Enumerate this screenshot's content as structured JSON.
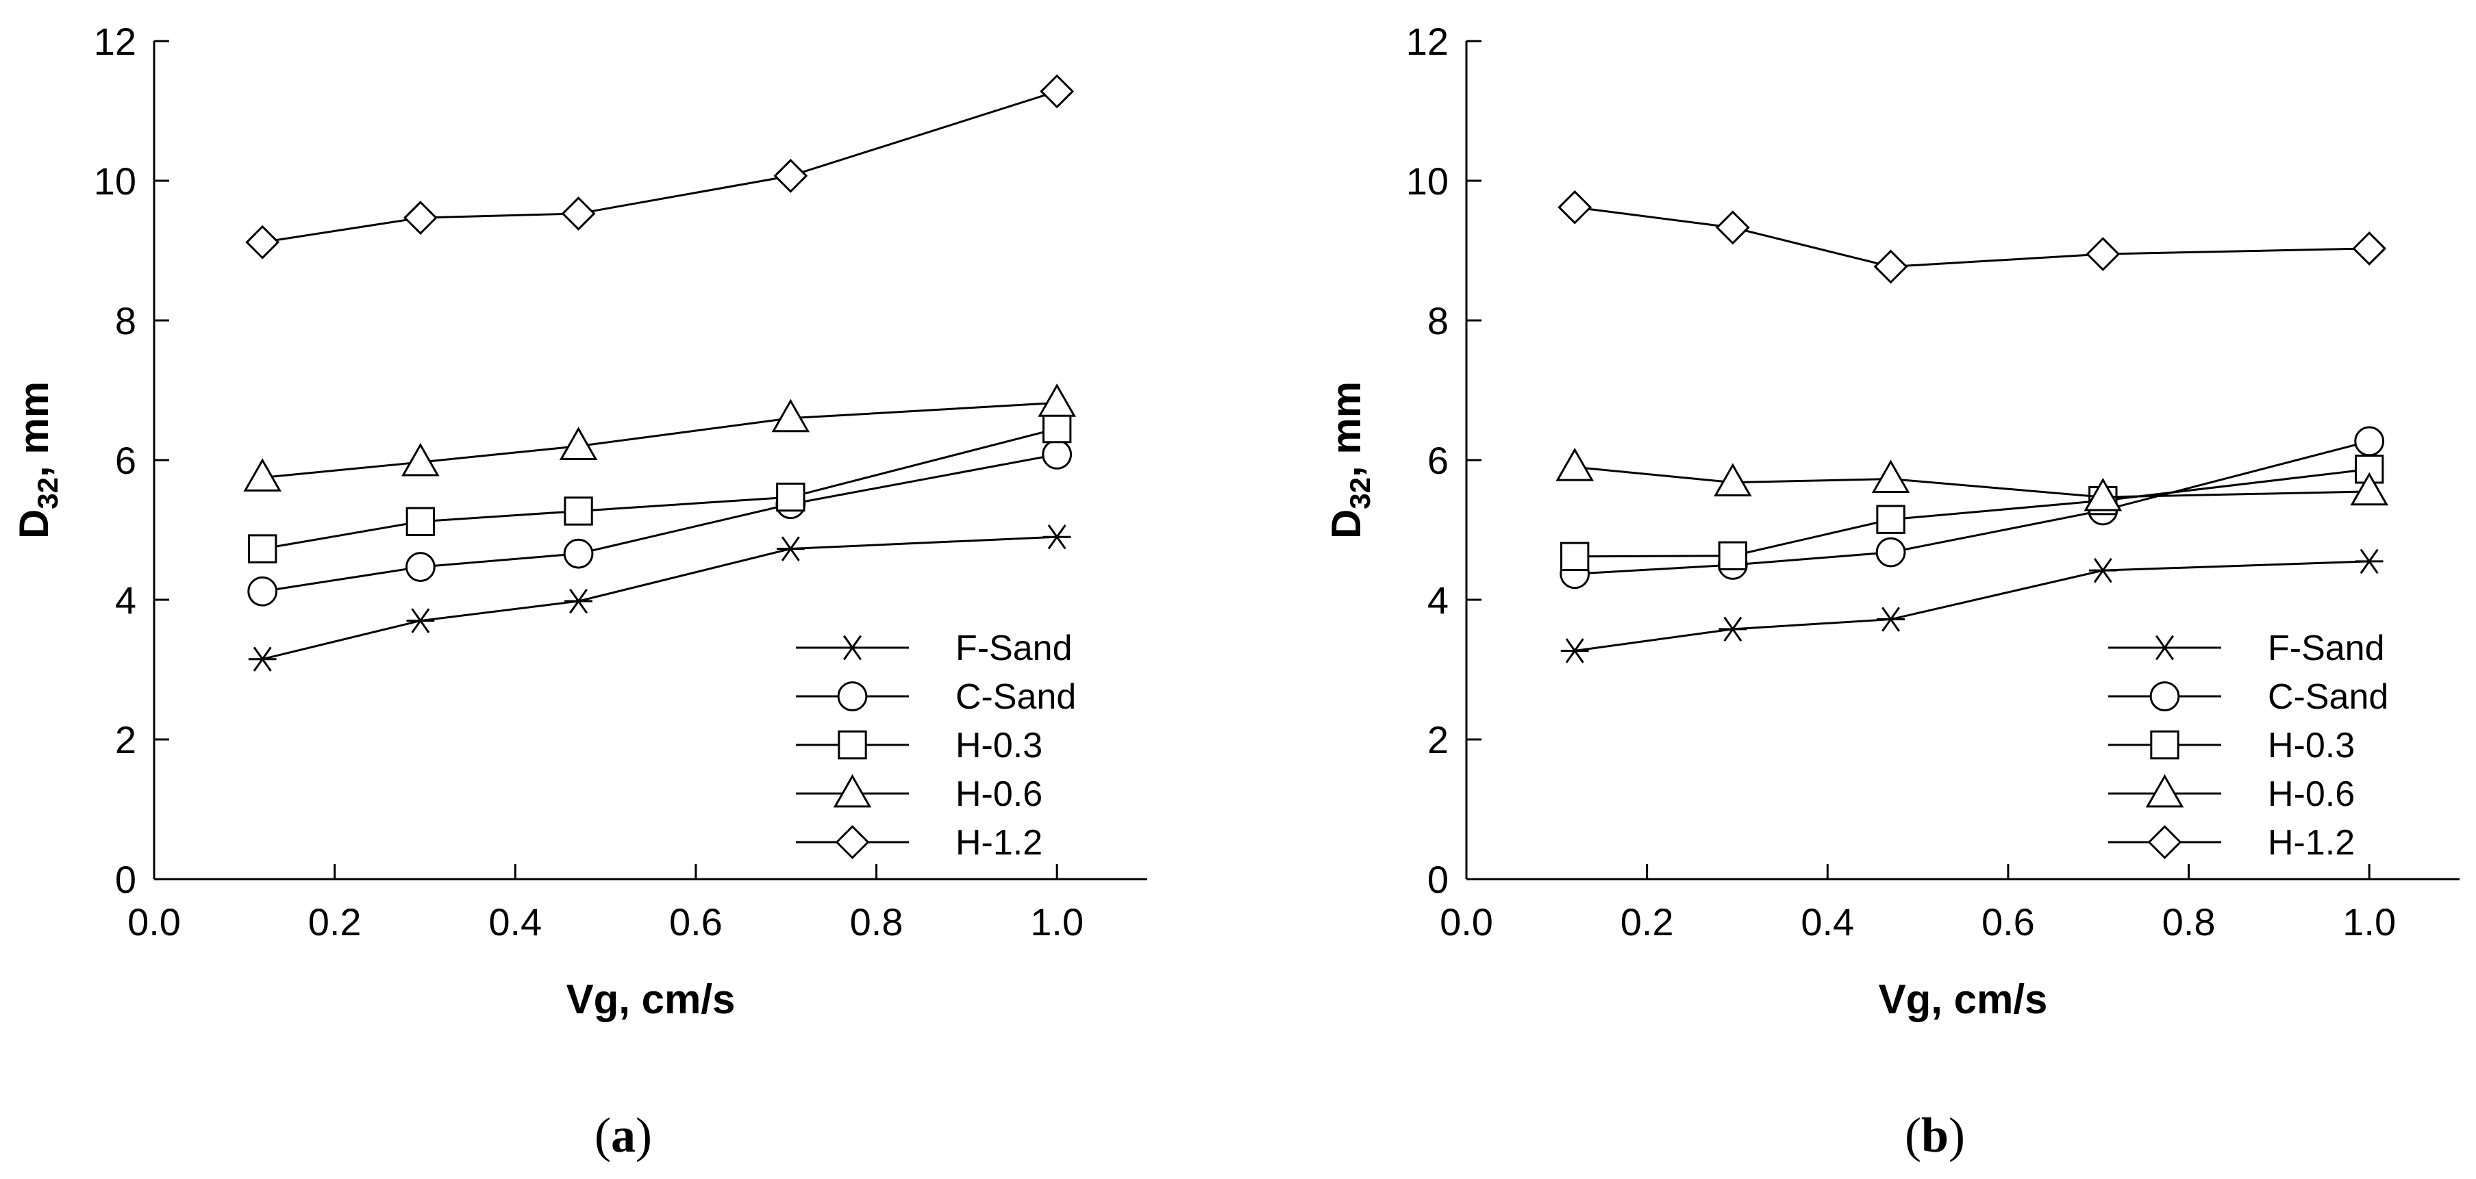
{
  "chart_data": [
    {
      "type": "line",
      "panel_label": "a",
      "title": "",
      "xlabel": "Vg, cm/s",
      "ylabel_main": "D",
      "ylabel_sub": "32",
      "ylabel_rest": ", mm",
      "xlim": [
        0.0,
        1.1
      ],
      "ylim": [
        0,
        12
      ],
      "xticks": [
        "0.0",
        "0.2",
        "0.4",
        "0.6",
        "0.8",
        "1.0"
      ],
      "yticks": [
        "0",
        "2",
        "4",
        "6",
        "8",
        "10",
        "12"
      ],
      "x": [
        0.12,
        0.295,
        0.47,
        0.705,
        1.0
      ],
      "legend_position": "bottom-right",
      "series": [
        {
          "name": "F-Sand",
          "marker": "asterisk",
          "values": [
            3.15,
            3.7,
            3.98,
            4.73,
            4.9
          ]
        },
        {
          "name": "C-Sand",
          "marker": "circle",
          "values": [
            4.12,
            4.47,
            4.66,
            5.37,
            6.08
          ]
        },
        {
          "name": "H-0.3",
          "marker": "square",
          "values": [
            4.73,
            5.12,
            5.27,
            5.47,
            6.45
          ]
        },
        {
          "name": "H-0.6",
          "marker": "triangle",
          "values": [
            5.75,
            5.97,
            6.2,
            6.6,
            6.82
          ]
        },
        {
          "name": "H-1.2",
          "marker": "diamond",
          "values": [
            9.12,
            9.47,
            9.53,
            10.07,
            11.28
          ]
        }
      ]
    },
    {
      "type": "line",
      "panel_label": "b",
      "title": "",
      "xlabel": "Vg, cm/s",
      "ylabel_main": "D",
      "ylabel_sub": "32",
      "ylabel_rest": ", mm",
      "xlim": [
        0.0,
        1.1
      ],
      "ylim": [
        0,
        12
      ],
      "xticks": [
        "0.0",
        "0.2",
        "0.4",
        "0.6",
        "0.8",
        "1.0"
      ],
      "yticks": [
        "0",
        "2",
        "4",
        "6",
        "8",
        "10",
        "12"
      ],
      "x": [
        0.12,
        0.295,
        0.47,
        0.705,
        1.0
      ],
      "legend_position": "bottom-right",
      "series": [
        {
          "name": "F-Sand",
          "marker": "asterisk",
          "values": [
            3.27,
            3.58,
            3.72,
            4.42,
            4.55
          ]
        },
        {
          "name": "C-Sand",
          "marker": "circle",
          "values": [
            4.37,
            4.5,
            4.68,
            5.28,
            6.27
          ]
        },
        {
          "name": "H-0.3",
          "marker": "square",
          "values": [
            4.62,
            4.63,
            5.15,
            5.42,
            5.87
          ]
        },
        {
          "name": "H-0.6",
          "marker": "triangle",
          "values": [
            5.9,
            5.68,
            5.73,
            5.47,
            5.55
          ]
        },
        {
          "name": "H-1.2",
          "marker": "diamond",
          "values": [
            9.62,
            9.33,
            8.77,
            8.95,
            9.03
          ]
        }
      ]
    }
  ]
}
